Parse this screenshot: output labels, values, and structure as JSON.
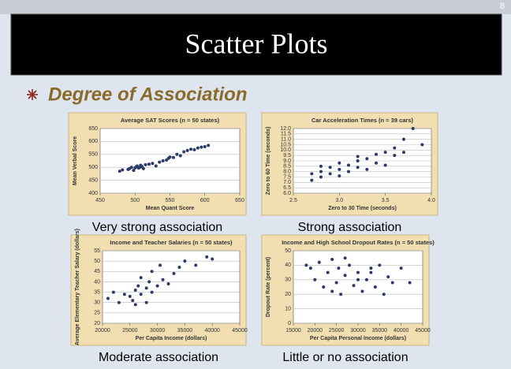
{
  "slide": {
    "page_number": "8",
    "title": "Scatter Plots",
    "bullet": "Degree of Association"
  },
  "chart_data": [
    {
      "type": "scatter",
      "title": "Average SAT Scores (n = 50 states)",
      "caption": "Very strong association",
      "x_label": "Mean Quant Score",
      "y_label": "Mean Verbal Score",
      "color": "#2b3a67",
      "grid": true,
      "xlim": [
        450,
        650
      ],
      "xticks": [
        450,
        500,
        550,
        600,
        650
      ],
      "ylim": [
        400,
        650
      ],
      "yticks": [
        400,
        450,
        500,
        550,
        600,
        650
      ],
      "x": [
        478,
        482,
        490,
        492,
        495,
        498,
        500,
        502,
        503,
        505,
        507,
        508,
        510,
        512,
        515,
        520,
        525,
        530,
        535,
        540,
        545,
        548,
        550,
        555,
        560,
        565,
        570,
        575,
        580,
        585,
        590,
        595,
        600,
        605
      ],
      "values": [
        485,
        490,
        492,
        495,
        500,
        488,
        498,
        502,
        505,
        497,
        500,
        508,
        503,
        495,
        510,
        512,
        515,
        505,
        520,
        525,
        528,
        535,
        540,
        538,
        550,
        545,
        560,
        565,
        570,
        568,
        575,
        578,
        580,
        585
      ]
    },
    {
      "type": "scatter",
      "title": "Car Acceleration Times (n = 39 cars)",
      "caption": "Strong association",
      "x_label": "Zero to 30 Time (seconds)",
      "y_label": "Zero to 60 Time (seconds)",
      "color": "#2b3a67",
      "grid": true,
      "xlim": [
        2.5,
        4
      ],
      "xticks": [
        2.5,
        {
          "value": 3,
          "label": "3.0"
        },
        3.5,
        {
          "value": 4,
          "label": "4.0"
        }
      ],
      "ylim": [
        6,
        12
      ],
      "yticks": [
        {
          "value": 6,
          "label": "6.0"
        },
        6.5,
        {
          "value": 7,
          "label": "7.0"
        },
        7.5,
        {
          "value": 8,
          "label": "8.0"
        },
        8.5,
        {
          "value": 9,
          "label": "9.0"
        },
        9.5,
        {
          "value": 10,
          "label": "10.0"
        },
        10.5,
        {
          "value": 11,
          "label": "11.0"
        },
        11.5,
        {
          "value": 12,
          "label": "12.0"
        }
      ],
      "x": [
        2.7,
        2.7,
        2.8,
        2.8,
        2.8,
        2.9,
        2.9,
        3.0,
        3.0,
        3.0,
        3.1,
        3.1,
        3.2,
        3.2,
        3.2,
        3.3,
        3.3,
        3.4,
        3.4,
        3.5,
        3.5,
        3.6,
        3.6,
        3.7,
        3.7,
        3.8,
        3.9
      ],
      "values": [
        7.2,
        7.8,
        7.5,
        8.0,
        8.5,
        7.8,
        8.4,
        7.6,
        8.2,
        8.8,
        8.0,
        8.6,
        8.4,
        9.0,
        9.4,
        8.2,
        9.2,
        8.8,
        9.6,
        8.6,
        9.8,
        9.5,
        10.2,
        9.8,
        11.0,
        12.0,
        10.5
      ]
    },
    {
      "type": "scatter",
      "title": "Income and Teacher Salaries (n = 50 states)",
      "caption": "Moderate association",
      "x_label": "Per Capita Income (dollars)",
      "y_label": "Average Elementary Teacher Salary (dollars)",
      "color": "#2b3a67",
      "grid": true,
      "xlim": [
        20000,
        45000
      ],
      "xticks": [
        20000,
        25000,
        30000,
        35000,
        40000,
        45000
      ],
      "ylim": [
        20,
        55
      ],
      "yticks": [
        20,
        25,
        30,
        35,
        40,
        45,
        50,
        55
      ],
      "x": [
        21000,
        22000,
        23000,
        24000,
        25000,
        25500,
        26000,
        26500,
        27000,
        27000,
        28000,
        28500,
        29000,
        29000,
        30000,
        30500,
        31000,
        32000,
        33000,
        34000,
        35000,
        37000,
        39000,
        40000,
        28000,
        26000
      ],
      "values": [
        32,
        35,
        30,
        34,
        33,
        31,
        36,
        38,
        34,
        42,
        37,
        40,
        35,
        45,
        38,
        48,
        41,
        39,
        44,
        47,
        50,
        48,
        52,
        51,
        30,
        29
      ]
    },
    {
      "type": "scatter",
      "title": "Income and High School Dropout Rates (n = 50 states)",
      "caption": "Little or no association",
      "x_label": "Per Capita Personal Income (dollars)",
      "y_label": "Dropout Rate (percent)",
      "color": "#2b3a67",
      "grid": true,
      "xlim": [
        15000,
        45000
      ],
      "xticks": [
        15000,
        20000,
        25000,
        30000,
        35000,
        40000,
        45000
      ],
      "ylim": [
        0,
        50
      ],
      "yticks": [
        0,
        10,
        20,
        30,
        40,
        50
      ],
      "x": [
        18000,
        19000,
        20000,
        21000,
        22000,
        23000,
        24000,
        25000,
        25500,
        26000,
        27000,
        28000,
        29000,
        30000,
        31000,
        32000,
        33000,
        34000,
        35000,
        36000,
        37000,
        38000,
        40000,
        42000,
        24000,
        27000,
        30000,
        33000
      ],
      "values": [
        40,
        38,
        30,
        42,
        25,
        35,
        44,
        28,
        38,
        20,
        33,
        40,
        26,
        35,
        22,
        30,
        38,
        25,
        40,
        20,
        32,
        28,
        38,
        28,
        22,
        45,
        30,
        35
      ]
    }
  ]
}
